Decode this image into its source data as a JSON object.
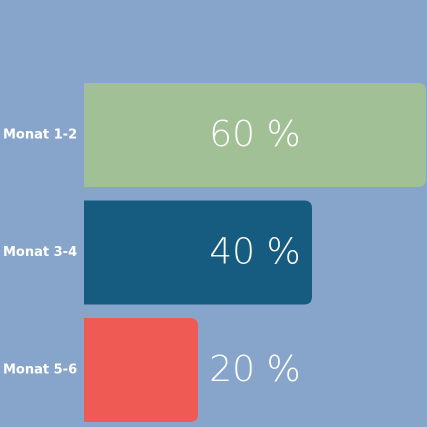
{
  "chart_data": {
    "type": "bar",
    "orientation": "horizontal",
    "categories": [
      "Monat 1-2",
      "Monat 3-4",
      "Monat 5-6"
    ],
    "values": [
      60,
      40,
      20
    ],
    "value_labels": [
      "60 %",
      "40 %",
      "20 %"
    ],
    "colors": [
      "#a2c095",
      "#165c80",
      "#ef5a55"
    ],
    "xlim": [
      0,
      60
    ]
  }
}
